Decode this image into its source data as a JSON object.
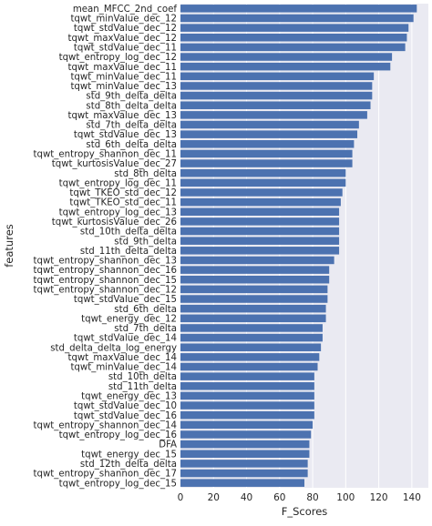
{
  "chart_data": {
    "type": "bar",
    "orientation": "horizontal",
    "xlabel": "F_Scores",
    "ylabel": "features",
    "xlim": [
      0,
      150
    ],
    "xticks": [
      0,
      20,
      40,
      60,
      80,
      100,
      120,
      140
    ],
    "grid": true,
    "bar_color": "#4c72b0",
    "background_color": "#eaeaf2",
    "grid_color": "#ffffff",
    "categories": [
      "mean_MFCC_2nd_coef",
      "tqwt_minValue_dec_12",
      "tqwt_stdValue_dec_12",
      "tqwt_maxValue_dec_12",
      "tqwt_stdValue_dec_11",
      "tqwt_entropy_log_dec_12",
      "tqwt_maxValue_dec_11",
      "tqwt_minValue_dec_11",
      "tqwt_minValue_dec_13",
      "std_9th_delta_delta",
      "std_8th_delta_delta",
      "tqwt_maxValue_dec_13",
      "std_7th_delta_delta",
      "tqwt_stdValue_dec_13",
      "std_6th_delta_delta",
      "tqwt_entropy_shannon_dec_11",
      "tqwt_kurtosisValue_dec_27",
      "std_8th_delta",
      "tqwt_entropy_log_dec_11",
      "tqwt_TKEO_std_dec_12",
      "tqwt_TKEO_std_dec_11",
      "tqwt_entropy_log_dec_13",
      "tqwt_kurtosisValue_dec_26",
      "std_10th_delta_delta",
      "std_9th_delta",
      "std_11th_delta_delta",
      "tqwt_entropy_shannon_dec_13",
      "tqwt_entropy_shannon_dec_16",
      "tqwt_entropy_shannon_dec_15",
      "tqwt_entropy_shannon_dec_12",
      "tqwt_stdValue_dec_15",
      "std_6th_delta",
      "tqwt_energy_dec_12",
      "std_7th_delta",
      "tqwt_stdValue_dec_14",
      "std_delta_delta_log_energy",
      "tqwt_maxValue_dec_14",
      "tqwt_minValue_dec_14",
      "std_10th_delta",
      "std_11th_delta",
      "tqwt_energy_dec_13",
      "tqwt_stdValue_dec_10",
      "tqwt_stdValue_dec_16",
      "tqwt_entropy_shannon_dec_14",
      "tqwt_entropy_log_dec_16",
      "DFA",
      "tqwt_energy_dec_15",
      "std_12th_delta_delta",
      "tqwt_entropy_shannon_dec_17",
      "tqwt_entropy_log_dec_15"
    ],
    "values": [
      143,
      141,
      138,
      137,
      136,
      128,
      127,
      117,
      116,
      116,
      115,
      113,
      108,
      107,
      105,
      104,
      104,
      100,
      100,
      98,
      97,
      96,
      96,
      96,
      96,
      96,
      93,
      90,
      90,
      89,
      89,
      88,
      88,
      86,
      86,
      85,
      84,
      83,
      81,
      81,
      81,
      81,
      81,
      80,
      79,
      78,
      78,
      77,
      77,
      75
    ]
  }
}
